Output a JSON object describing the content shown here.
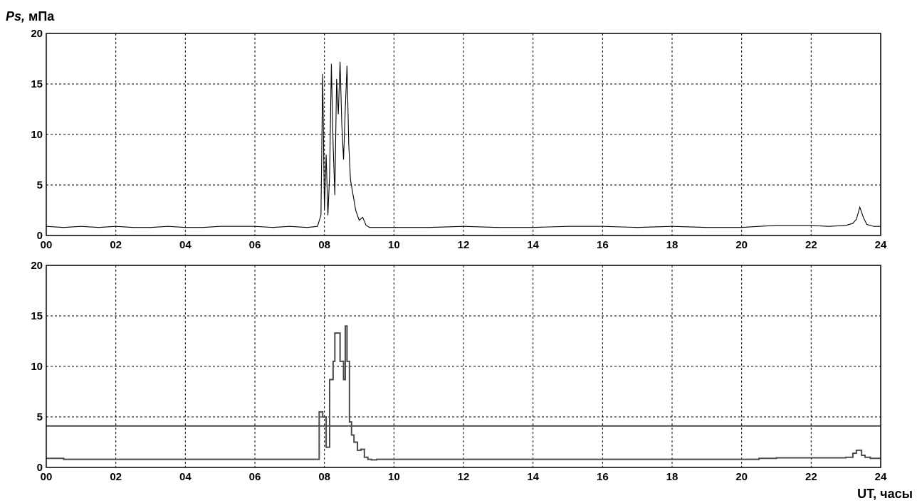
{
  "y_axis_label": {
    "symbol": "Ps,",
    "unit": " мПа"
  },
  "x_axis_label": "UT, часы",
  "colors": {
    "raw": "#000000",
    "averaged": "#4a4a4a",
    "threshold": "#303030",
    "grid": "#000000"
  },
  "chart_data": [
    {
      "type": "line",
      "series_description_visible": false,
      "xlim": [
        0,
        24
      ],
      "ylim": [
        0,
        20
      ],
      "x_ticks": [
        "00",
        "02",
        "04",
        "06",
        "08",
        "10",
        "12",
        "14",
        "16",
        "18",
        "20",
        "22",
        "24"
      ],
      "y_ticks": [
        "0",
        "5",
        "10",
        "15",
        "20"
      ],
      "grid": true,
      "x": [
        0,
        0.5,
        1,
        1.5,
        2,
        2.5,
        3,
        3.5,
        4,
        4.5,
        5,
        5.5,
        6,
        6.5,
        7,
        7.5,
        7.8,
        7.9,
        7.95,
        8.0,
        8.05,
        8.1,
        8.15,
        8.2,
        8.25,
        8.3,
        8.35,
        8.4,
        8.45,
        8.5,
        8.55,
        8.6,
        8.65,
        8.7,
        8.75,
        8.8,
        8.9,
        9.0,
        9.1,
        9.2,
        9.3,
        9.5,
        10,
        11,
        12,
        13,
        14,
        15,
        16,
        17,
        18,
        19,
        20,
        20.5,
        21,
        21.5,
        22,
        22.5,
        23,
        23.2,
        23.3,
        23.4,
        23.5,
        23.6,
        23.8,
        24
      ],
      "y": [
        0.9,
        0.8,
        0.9,
        0.8,
        0.9,
        0.8,
        0.8,
        0.9,
        0.8,
        0.8,
        0.9,
        0.9,
        0.9,
        0.8,
        0.9,
        0.8,
        0.9,
        2.0,
        16.0,
        2.5,
        8.0,
        2.0,
        6.0,
        17.0,
        9.0,
        4.0,
        15.5,
        12.0,
        17.2,
        11.0,
        7.5,
        12.5,
        16.8,
        9.0,
        5.5,
        4.5,
        2.5,
        1.5,
        1.8,
        1.0,
        0.8,
        0.8,
        0.8,
        0.8,
        0.9,
        0.8,
        0.8,
        0.9,
        0.9,
        0.8,
        0.9,
        0.8,
        0.8,
        0.9,
        1.0,
        1.0,
        1.0,
        0.9,
        1.0,
        1.2,
        1.6,
        2.8,
        1.8,
        1.1,
        0.9,
        0.9
      ]
    },
    {
      "type": "line",
      "xlim": [
        0,
        24
      ],
      "ylim": [
        0,
        20
      ],
      "x_ticks": [
        "00",
        "02",
        "04",
        "06",
        "08",
        "10",
        "12",
        "14",
        "16",
        "18",
        "20",
        "22",
        "24"
      ],
      "y_ticks": [
        "0",
        "5",
        "10",
        "15",
        "20"
      ],
      "grid": true,
      "step": true,
      "threshold": 4.1,
      "x": [
        0,
        0.5,
        1,
        2,
        3,
        4,
        5,
        6,
        7,
        7.8,
        7.85,
        7.95,
        8.05,
        8.15,
        8.25,
        8.3,
        8.35,
        8.45,
        8.55,
        8.6,
        8.65,
        8.72,
        8.78,
        8.85,
        8.95,
        9.05,
        9.15,
        9.25,
        9.35,
        9.5,
        10,
        11,
        12,
        13,
        14,
        15,
        16,
        17,
        18,
        19,
        20,
        20.5,
        21,
        21.5,
        22,
        22.5,
        23,
        23.2,
        23.3,
        23.45,
        23.55,
        23.7,
        24
      ],
      "y": [
        0.9,
        0.8,
        0.8,
        0.8,
        0.8,
        0.8,
        0.8,
        0.8,
        0.8,
        0.8,
        5.5,
        5.0,
        2.0,
        8.7,
        10.5,
        13.3,
        13.3,
        10.5,
        8.7,
        14.0,
        10.5,
        4.5,
        3.2,
        2.5,
        1.7,
        1.8,
        1.0,
        0.8,
        0.75,
        0.8,
        0.8,
        0.8,
        0.8,
        0.8,
        0.8,
        0.8,
        0.8,
        0.8,
        0.8,
        0.8,
        0.8,
        0.9,
        0.95,
        0.95,
        0.95,
        0.95,
        1.0,
        1.4,
        1.7,
        1.2,
        1.0,
        0.9,
        0.9
      ]
    }
  ]
}
